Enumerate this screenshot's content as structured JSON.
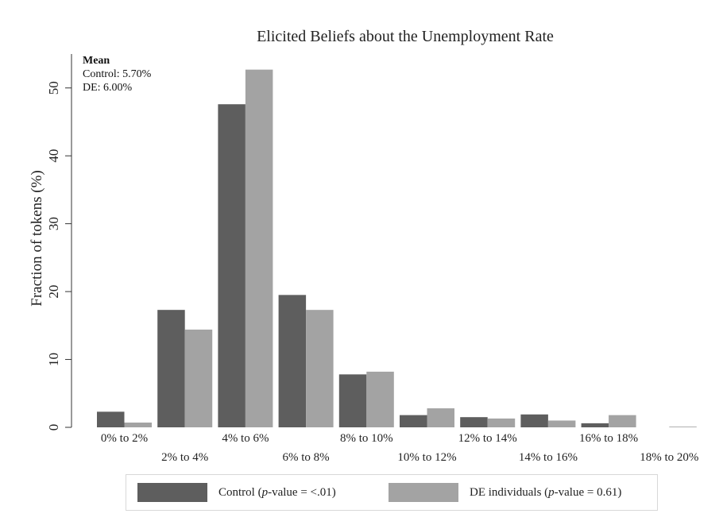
{
  "chart_data": {
    "type": "bar",
    "title": "Elicited Beliefs about the Unemployment Rate",
    "ylabel": "Fraction of tokens (%)",
    "xlabel": "",
    "ylim": [
      0,
      55
    ],
    "yticks": [
      0,
      10,
      20,
      30,
      40,
      50
    ],
    "categories": [
      "0% to 2%",
      "2% to 4%",
      "4% to 6%",
      "6% to 8%",
      "8% to 10%",
      "10% to 12%",
      "12% to 14%",
      "14% to 16%",
      "16% to 18%",
      "18% to 20%"
    ],
    "series": [
      {
        "name": "Control",
        "color": "#5e5e5e",
        "values": [
          2.3,
          17.3,
          47.6,
          19.5,
          7.8,
          1.8,
          1.5,
          1.9,
          0.6,
          0.0
        ]
      },
      {
        "name": "DE individuals",
        "color": "#a3a3a3",
        "values": [
          0.7,
          14.4,
          52.7,
          17.3,
          8.2,
          2.8,
          1.3,
          1.0,
          1.8,
          0.1
        ]
      }
    ],
    "grid": false,
    "legend_position": "bottom"
  },
  "annotation": {
    "title": "Mean",
    "lines": [
      "Control: 5.70%",
      "DE: 6.00%"
    ]
  },
  "legend": {
    "control": {
      "prefix": "Control (",
      "p": "p",
      "suffix": "-value = <.01)"
    },
    "de": {
      "prefix": "DE individuals (",
      "p": "p",
      "suffix": "-value = 0.61)"
    }
  }
}
